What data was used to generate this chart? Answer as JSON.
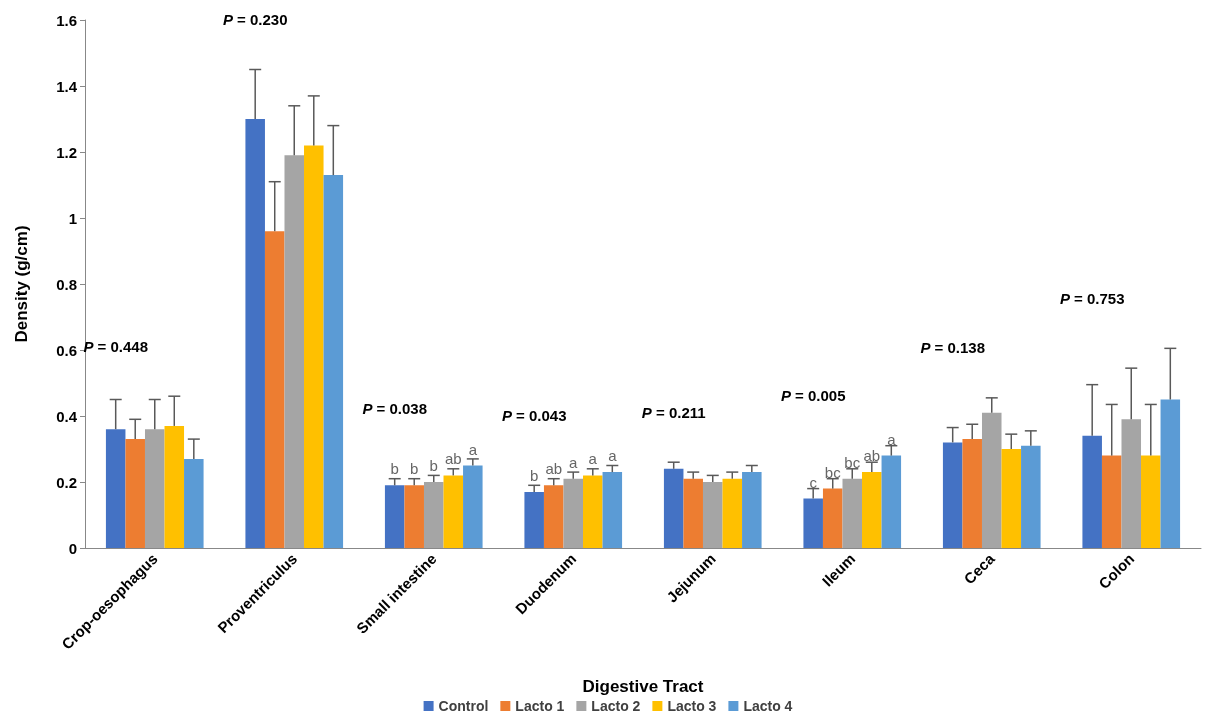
{
  "chart_data": {
    "type": "bar",
    "xlabel": "Digestive Tract",
    "ylabel": "Density (g/cm)",
    "categories": [
      "Crop-oesophagus",
      "Proventriculus",
      "Small intestine",
      "Duodenum",
      "Jejunum",
      "Ileum",
      "Ceca",
      "Colon"
    ],
    "series": [
      {
        "name": "Control",
        "color": "#4472c4",
        "values": [
          0.36,
          1.3,
          0.19,
          0.17,
          0.24,
          0.15,
          0.32,
          0.34
        ],
        "errors": [
          [
            0.36,
            0.45
          ],
          [
            1.3,
            1.45
          ],
          [
            0.19,
            0.21
          ],
          [
            0.17,
            0.19
          ],
          [
            0.24,
            0.26
          ],
          [
            0.15,
            0.18
          ],
          [
            0.32,
            0.365
          ],
          [
            0.34,
            0.495
          ]
        ],
        "value_labels": [
          null,
          null,
          "b",
          "b",
          null,
          "c",
          null,
          null
        ]
      },
      {
        "name": "Lacto 1",
        "color": "#ed7d31",
        "values": [
          0.33,
          0.96,
          0.19,
          0.19,
          0.21,
          0.18,
          0.33,
          0.28
        ],
        "errors": [
          [
            0.33,
            0.39
          ],
          [
            0.96,
            1.11
          ],
          [
            0.19,
            0.21
          ],
          [
            0.19,
            0.21
          ],
          [
            0.21,
            0.23
          ],
          [
            0.18,
            0.21
          ],
          [
            0.33,
            0.375
          ],
          [
            0.28,
            0.435
          ]
        ],
        "value_labels": [
          null,
          null,
          "b",
          "ab",
          null,
          "bc",
          null,
          null
        ]
      },
      {
        "name": "Lacto 2",
        "color": "#a5a5a5",
        "values": [
          0.36,
          1.19,
          0.2,
          0.21,
          0.2,
          0.21,
          0.41,
          0.39
        ],
        "errors": [
          [
            0.36,
            0.45
          ],
          [
            1.19,
            1.34
          ],
          [
            0.2,
            0.22
          ],
          [
            0.21,
            0.23
          ],
          [
            0.2,
            0.22
          ],
          [
            0.21,
            0.24
          ],
          [
            0.41,
            0.455
          ],
          [
            0.39,
            0.545
          ]
        ],
        "value_labels": [
          null,
          null,
          "b",
          "a",
          null,
          "bc",
          null,
          null
        ]
      },
      {
        "name": "Lacto 3",
        "color": "#ffc000",
        "values": [
          0.37,
          1.22,
          0.22,
          0.22,
          0.21,
          0.23,
          0.3,
          0.28
        ],
        "errors": [
          [
            0.37,
            0.46
          ],
          [
            1.22,
            1.37
          ],
          [
            0.22,
            0.24
          ],
          [
            0.22,
            0.24
          ],
          [
            0.21,
            0.23
          ],
          [
            0.23,
            0.26
          ],
          [
            0.3,
            0.345
          ],
          [
            0.28,
            0.435
          ]
        ],
        "value_labels": [
          null,
          null,
          "ab",
          "a",
          null,
          "ab",
          null,
          null
        ]
      },
      {
        "name": "Lacto 4",
        "color": "#5b9bd5",
        "values": [
          0.27,
          1.13,
          0.25,
          0.23,
          0.23,
          0.28,
          0.31,
          0.45
        ],
        "errors": [
          [
            0.27,
            0.33
          ],
          [
            1.13,
            1.28
          ],
          [
            0.25,
            0.27
          ],
          [
            0.23,
            0.25
          ],
          [
            0.23,
            0.25
          ],
          [
            0.28,
            0.31
          ],
          [
            0.31,
            0.355
          ],
          [
            0.45,
            0.605
          ]
        ],
        "value_labels": [
          null,
          null,
          "a",
          "a",
          null,
          "a",
          null,
          null
        ]
      }
    ],
    "ylim": [
      0,
      1.6
    ],
    "yticks": [
      0,
      0.2,
      0.4,
      0.6,
      0.8,
      1,
      1.2,
      1.4,
      1.6
    ],
    "grid": false,
    "legend": "bottom",
    "annotations": [
      "P = 0.448",
      "P = 0.230",
      "P = 0.038",
      "P = 0.043",
      "P = 0.211",
      "P = 0.005",
      "P = 0.138",
      "P = 0.753"
    ]
  }
}
